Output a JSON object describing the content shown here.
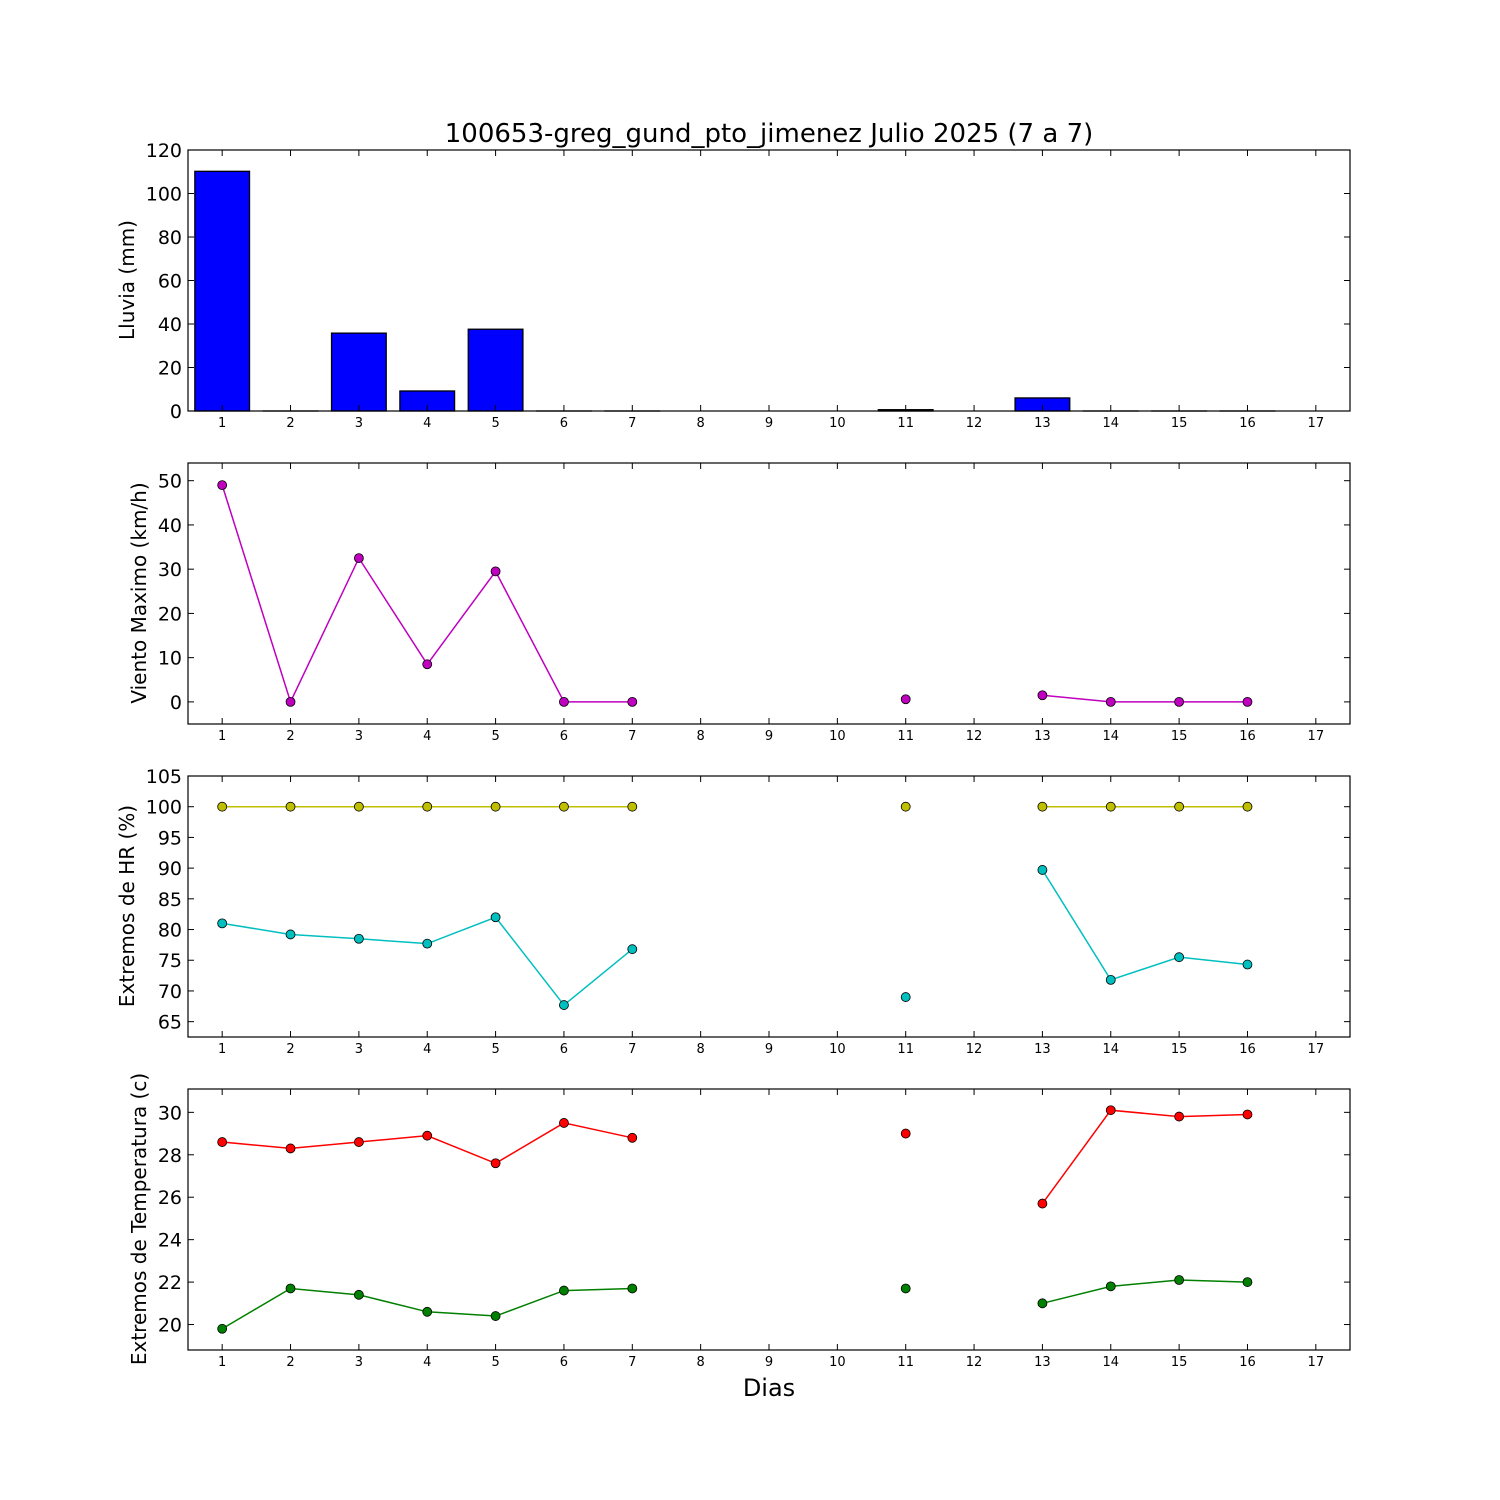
{
  "figure": {
    "title": "100653-greg_gund_pto_jimenez Julio 2025  (7 a 7)",
    "xlabel": "Dias"
  },
  "chart_data": [
    {
      "type": "bar",
      "id": "lluvia",
      "ylabel": "Lluvia (mm)",
      "ylim": [
        0,
        120
      ],
      "yticks": [
        0,
        20,
        40,
        60,
        80,
        100,
        120
      ],
      "xlim": [
        0.5,
        17.5
      ],
      "xticks": [
        1,
        2,
        3,
        4,
        5,
        6,
        7,
        8,
        9,
        10,
        11,
        12,
        13,
        14,
        15,
        16,
        17
      ],
      "grid": false,
      "x": [
        1,
        2,
        3,
        4,
        5,
        6,
        7,
        8,
        9,
        10,
        11,
        12,
        13,
        14,
        15,
        16,
        17
      ],
      "values": [
        110.2,
        0,
        35.8,
        9.2,
        37.6,
        0,
        0,
        null,
        null,
        null,
        0.6,
        null,
        6.0,
        0,
        0,
        0,
        null
      ],
      "color": "#0000ff"
    },
    {
      "type": "line",
      "id": "viento",
      "ylabel": "Viento Maximo (km/h)",
      "ylim": [
        -5,
        54
      ],
      "yticks": [
        0,
        10,
        20,
        30,
        40,
        50
      ],
      "xlim": [
        0.5,
        17.5
      ],
      "xticks": [
        1,
        2,
        3,
        4,
        5,
        6,
        7,
        8,
        9,
        10,
        11,
        12,
        13,
        14,
        15,
        16,
        17
      ],
      "grid": false,
      "x": [
        1,
        2,
        3,
        4,
        5,
        6,
        7,
        8,
        9,
        10,
        11,
        12,
        13,
        14,
        15,
        16,
        17
      ],
      "series": [
        {
          "values": [
            49,
            0,
            32.5,
            8.5,
            29.5,
            0,
            0,
            null,
            null,
            null,
            0.6,
            null,
            1.5,
            0,
            0,
            0,
            null
          ],
          "color": "#bf00bf"
        }
      ]
    },
    {
      "type": "line",
      "id": "hr",
      "ylabel": "Extremos de HR (%)",
      "ylim": [
        62.5,
        105
      ],
      "yticks": [
        65,
        70,
        75,
        80,
        85,
        90,
        95,
        100,
        105
      ],
      "xlim": [
        0.5,
        17.5
      ],
      "xticks": [
        1,
        2,
        3,
        4,
        5,
        6,
        7,
        8,
        9,
        10,
        11,
        12,
        13,
        14,
        15,
        16,
        17
      ],
      "grid": false,
      "x": [
        1,
        2,
        3,
        4,
        5,
        6,
        7,
        8,
        9,
        10,
        11,
        12,
        13,
        14,
        15,
        16,
        17
      ],
      "series": [
        {
          "values": [
            100,
            100,
            100,
            100,
            100,
            100,
            100,
            null,
            null,
            null,
            100,
            null,
            100,
            100,
            100,
            100,
            null
          ],
          "color": "#bfbf00"
        },
        {
          "values": [
            81,
            79.2,
            78.5,
            77.7,
            82,
            67.7,
            76.8,
            null,
            null,
            null,
            69,
            null,
            89.7,
            71.8,
            75.5,
            74.3,
            null
          ],
          "color": "#00bfbf"
        }
      ]
    },
    {
      "type": "line",
      "id": "temperatura",
      "ylabel": "Extremos de Temperatura (c)",
      "ylim": [
        18.8,
        31.1
      ],
      "yticks": [
        20,
        22,
        24,
        26,
        28,
        30
      ],
      "xlim": [
        0.5,
        17.5
      ],
      "xticks": [
        1,
        2,
        3,
        4,
        5,
        6,
        7,
        8,
        9,
        10,
        11,
        12,
        13,
        14,
        15,
        16,
        17
      ],
      "grid": false,
      "x": [
        1,
        2,
        3,
        4,
        5,
        6,
        7,
        8,
        9,
        10,
        11,
        12,
        13,
        14,
        15,
        16,
        17
      ],
      "series": [
        {
          "values": [
            28.6,
            28.3,
            28.6,
            28.9,
            27.6,
            29.5,
            28.8,
            null,
            null,
            null,
            29,
            null,
            25.7,
            30.1,
            29.8,
            29.9,
            null
          ],
          "color": "#ff0000"
        },
        {
          "values": [
            19.8,
            21.7,
            21.4,
            20.6,
            20.4,
            21.6,
            21.7,
            null,
            null,
            null,
            21.7,
            null,
            21,
            21.8,
            22.1,
            22,
            null
          ],
          "color": "#008000"
        }
      ]
    }
  ]
}
